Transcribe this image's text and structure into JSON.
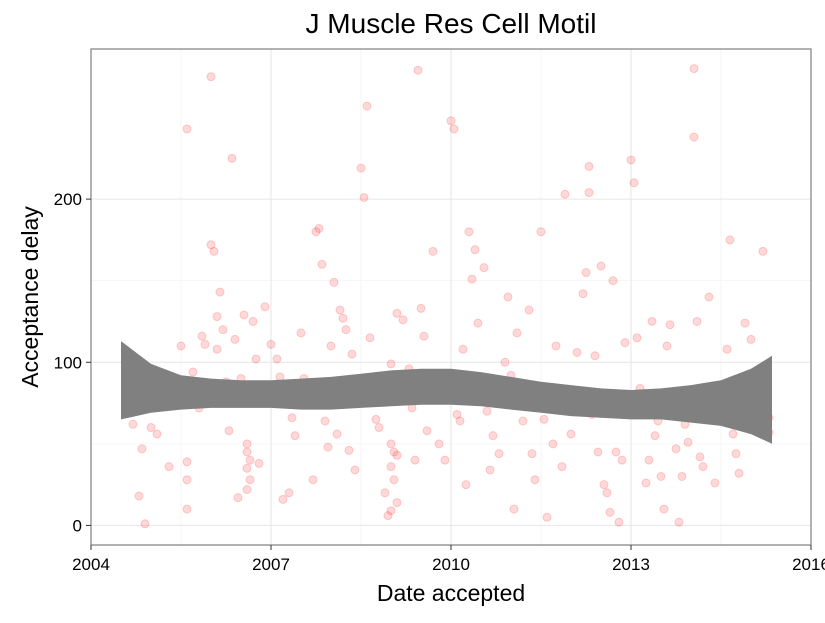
{
  "chart_data": {
    "type": "scatter",
    "title": "J Muscle Res Cell Motil",
    "xlabel": "Date accepted",
    "ylabel": "Acceptance delay",
    "xlim": [
      2004,
      2016
    ],
    "ylim": [
      -12,
      292
    ],
    "x_ticks": [
      2004,
      2007,
      2010,
      2013,
      2016
    ],
    "x_tick_labels": [
      "2004",
      "2007",
      "2010",
      "2013",
      "2016"
    ],
    "y_ticks": [
      0,
      100,
      200
    ],
    "y_tick_labels": [
      "0",
      "100",
      "200"
    ],
    "grid": true,
    "point_color": "#ff0000",
    "point_opacity": 0.15,
    "band_color": "#808080",
    "series": [
      {
        "points": [
          [
            2004.6,
            97
          ],
          [
            2004.7,
            62
          ],
          [
            2004.8,
            18
          ],
          [
            2004.9,
            1
          ],
          [
            2004.85,
            47
          ],
          [
            2005.0,
            60
          ],
          [
            2005.1,
            56
          ],
          [
            2005.3,
            84
          ],
          [
            2005.35,
            74
          ],
          [
            2005.3,
            36
          ],
          [
            2005.5,
            110
          ],
          [
            2005.6,
            243
          ],
          [
            2005.6,
            39
          ],
          [
            2005.6,
            28
          ],
          [
            2005.6,
            10
          ],
          [
            2005.7,
            94
          ],
          [
            2005.8,
            72
          ],
          [
            2005.85,
            116
          ],
          [
            2005.9,
            111
          ],
          [
            2006.0,
            275
          ],
          [
            2006.0,
            172
          ],
          [
            2006.05,
            168
          ],
          [
            2006.1,
            128
          ],
          [
            2006.1,
            108
          ],
          [
            2006.15,
            143
          ],
          [
            2006.2,
            120
          ],
          [
            2006.25,
            88
          ],
          [
            2006.3,
            58
          ],
          [
            2006.35,
            225
          ],
          [
            2006.4,
            114
          ],
          [
            2006.45,
            17
          ],
          [
            2006.5,
            90
          ],
          [
            2006.55,
            129
          ],
          [
            2006.6,
            50
          ],
          [
            2006.6,
            45
          ],
          [
            2006.65,
            40
          ],
          [
            2006.6,
            35
          ],
          [
            2006.65,
            28
          ],
          [
            2006.6,
            22
          ],
          [
            2006.7,
            125
          ],
          [
            2006.75,
            102
          ],
          [
            2006.7,
            84
          ],
          [
            2006.8,
            38
          ],
          [
            2006.9,
            134
          ],
          [
            2007.0,
            111
          ],
          [
            2007.1,
            102
          ],
          [
            2007.15,
            91
          ],
          [
            2007.2,
            16
          ],
          [
            2007.3,
            20
          ],
          [
            2007.35,
            66
          ],
          [
            2007.4,
            55
          ],
          [
            2007.5,
            118
          ],
          [
            2007.55,
            90
          ],
          [
            2007.6,
            74
          ],
          [
            2007.7,
            28
          ],
          [
            2007.75,
            180
          ],
          [
            2007.8,
            182
          ],
          [
            2007.85,
            160
          ],
          [
            2007.9,
            64
          ],
          [
            2007.95,
            48
          ],
          [
            2008.0,
            110
          ],
          [
            2008.05,
            149
          ],
          [
            2008.1,
            56
          ],
          [
            2008.15,
            132
          ],
          [
            2008.2,
            127
          ],
          [
            2008.25,
            120
          ],
          [
            2008.3,
            46
          ],
          [
            2008.35,
            105
          ],
          [
            2008.4,
            34
          ],
          [
            2008.5,
            219
          ],
          [
            2008.55,
            201
          ],
          [
            2008.6,
            257
          ],
          [
            2008.65,
            115
          ],
          [
            2008.7,
            90
          ],
          [
            2008.75,
            65
          ],
          [
            2008.8,
            60
          ],
          [
            2008.9,
            20
          ],
          [
            2008.95,
            86
          ],
          [
            2009.0,
            50
          ],
          [
            2009.05,
            45
          ],
          [
            2009.1,
            43
          ],
          [
            2009.0,
            36
          ],
          [
            2009.05,
            28
          ],
          [
            2009.1,
            14
          ],
          [
            2009.0,
            9
          ],
          [
            2008.95,
            6
          ],
          [
            2009.0,
            99
          ],
          [
            2009.1,
            130
          ],
          [
            2009.2,
            126
          ],
          [
            2009.3,
            96
          ],
          [
            2009.35,
            72
          ],
          [
            2009.4,
            40
          ],
          [
            2009.45,
            279
          ],
          [
            2009.5,
            133
          ],
          [
            2009.55,
            116
          ],
          [
            2009.6,
            58
          ],
          [
            2009.7,
            168
          ],
          [
            2009.75,
            92
          ],
          [
            2009.8,
            50
          ],
          [
            2009.9,
            40
          ],
          [
            2010.0,
            248
          ],
          [
            2010.05,
            243
          ],
          [
            2010.1,
            68
          ],
          [
            2010.15,
            64
          ],
          [
            2010.2,
            108
          ],
          [
            2010.25,
            25
          ],
          [
            2010.3,
            180
          ],
          [
            2010.35,
            151
          ],
          [
            2010.4,
            169
          ],
          [
            2010.45,
            124
          ],
          [
            2010.5,
            90
          ],
          [
            2010.55,
            158
          ],
          [
            2010.6,
            70
          ],
          [
            2010.65,
            34
          ],
          [
            2010.7,
            55
          ],
          [
            2010.8,
            44
          ],
          [
            2010.9,
            100
          ],
          [
            2010.95,
            140
          ],
          [
            2011.0,
            92
          ],
          [
            2011.05,
            10
          ],
          [
            2011.1,
            118
          ],
          [
            2011.15,
            86
          ],
          [
            2011.2,
            64
          ],
          [
            2011.3,
            132
          ],
          [
            2011.35,
            44
          ],
          [
            2011.4,
            28
          ],
          [
            2011.5,
            180
          ],
          [
            2011.55,
            65
          ],
          [
            2011.6,
            5
          ],
          [
            2011.7,
            50
          ],
          [
            2011.75,
            110
          ],
          [
            2011.8,
            72
          ],
          [
            2011.85,
            36
          ],
          [
            2011.9,
            203
          ],
          [
            2012.0,
            56
          ],
          [
            2012.1,
            106
          ],
          [
            2012.2,
            142
          ],
          [
            2012.25,
            155
          ],
          [
            2012.3,
            204
          ],
          [
            2012.3,
            220
          ],
          [
            2012.35,
            68
          ],
          [
            2012.4,
            104
          ],
          [
            2012.45,
            45
          ],
          [
            2012.5,
            159
          ],
          [
            2012.55,
            25
          ],
          [
            2012.6,
            20
          ],
          [
            2012.65,
            8
          ],
          [
            2012.7,
            150
          ],
          [
            2012.75,
            45
          ],
          [
            2012.8,
            2
          ],
          [
            2012.85,
            40
          ],
          [
            2012.9,
            112
          ],
          [
            2013.0,
            224
          ],
          [
            2013.05,
            210
          ],
          [
            2013.1,
            115
          ],
          [
            2013.15,
            84
          ],
          [
            2013.2,
            70
          ],
          [
            2013.25,
            26
          ],
          [
            2013.3,
            40
          ],
          [
            2013.35,
            125
          ],
          [
            2013.4,
            55
          ],
          [
            2013.45,
            64
          ],
          [
            2013.5,
            30
          ],
          [
            2013.55,
            10
          ],
          [
            2013.6,
            110
          ],
          [
            2013.65,
            123
          ],
          [
            2013.7,
            80
          ],
          [
            2013.75,
            47
          ],
          [
            2013.8,
            2
          ],
          [
            2013.85,
            30
          ],
          [
            2013.9,
            62
          ],
          [
            2013.95,
            51
          ],
          [
            2014.05,
            280
          ],
          [
            2014.05,
            238
          ],
          [
            2014.1,
            125
          ],
          [
            2014.15,
            42
          ],
          [
            2014.2,
            36
          ],
          [
            2014.3,
            140
          ],
          [
            2014.4,
            26
          ],
          [
            2014.5,
            75
          ],
          [
            2014.6,
            108
          ],
          [
            2014.65,
            175
          ],
          [
            2014.7,
            56
          ],
          [
            2014.75,
            44
          ],
          [
            2014.8,
            32
          ],
          [
            2014.85,
            85
          ],
          [
            2014.9,
            124
          ],
          [
            2014.95,
            92
          ],
          [
            2015.0,
            114
          ],
          [
            2015.1,
            90
          ],
          [
            2015.15,
            78
          ],
          [
            2015.2,
            168
          ],
          [
            2015.3,
            66
          ],
          [
            2015.3,
            57
          ]
        ]
      }
    ],
    "smooth_band": {
      "x": [
        2004.5,
        2005.0,
        2005.5,
        2006.0,
        2006.5,
        2007.0,
        2007.5,
        2008.0,
        2008.5,
        2009.0,
        2009.5,
        2010.0,
        2010.5,
        2011.0,
        2011.5,
        2012.0,
        2012.5,
        2013.0,
        2013.5,
        2014.0,
        2014.5,
        2015.0,
        2015.35
      ],
      "upper": [
        113,
        99,
        92,
        90,
        89,
        89,
        90,
        91,
        93,
        95,
        96,
        96,
        94,
        91,
        88,
        86,
        84,
        83,
        84,
        86,
        89,
        96,
        104
      ],
      "lower": [
        65,
        69,
        71,
        72,
        72,
        72,
        71,
        71,
        72,
        73,
        74,
        74,
        73,
        71,
        69,
        67,
        66,
        65,
        65,
        63,
        61,
        56,
        50
      ]
    }
  }
}
